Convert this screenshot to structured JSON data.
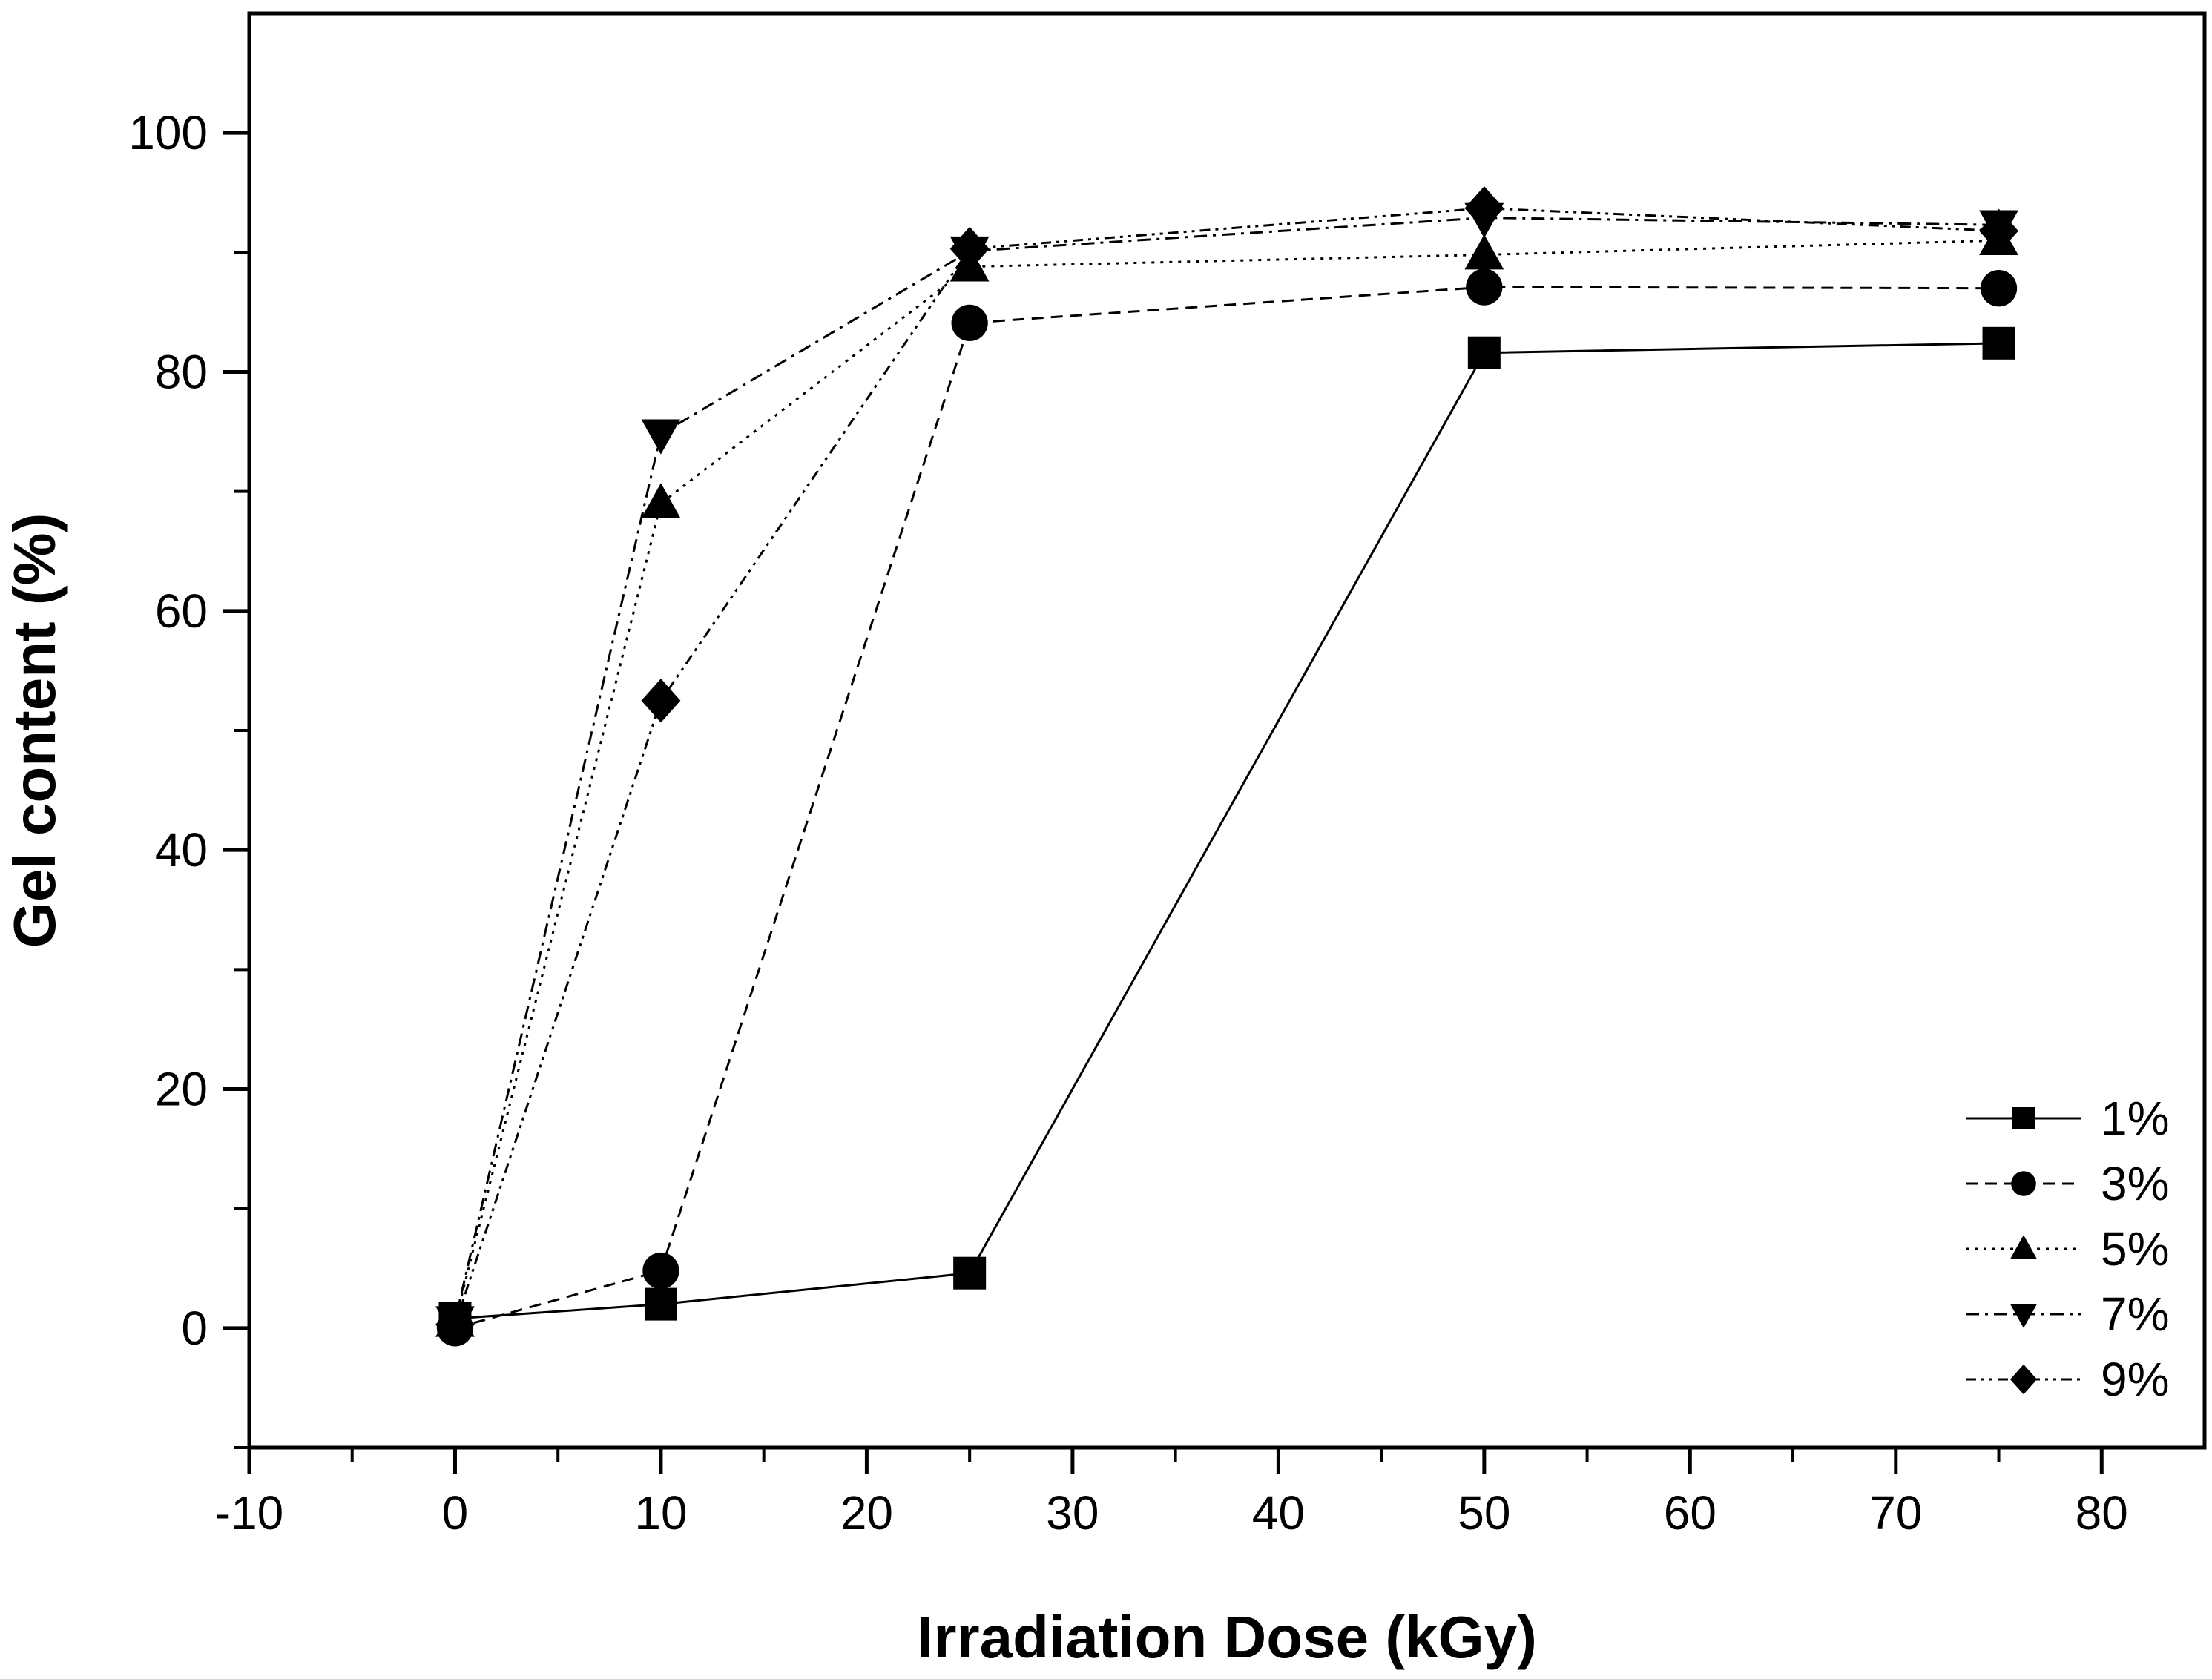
{
  "chart_data": {
    "type": "line",
    "title": "",
    "xlabel": "Irradiation Dose (kGy)",
    "ylabel": "Gel content (%)",
    "xlim": [
      -10,
      85
    ],
    "ylim": [
      -10,
      110
    ],
    "x_major_ticks": [
      -10,
      0,
      10,
      20,
      30,
      40,
      50,
      60,
      70,
      80
    ],
    "x_minor_ticks": [
      -5,
      5,
      15,
      25,
      35,
      45,
      55,
      65,
      75
    ],
    "y_major_ticks": [
      0,
      20,
      40,
      60,
      80,
      100
    ],
    "y_minor_ticks": [
      -10,
      10,
      30,
      50,
      70,
      90
    ],
    "x_tick_labels": [
      "-10",
      "0",
      "10",
      "20",
      "30",
      "40",
      "50",
      "60",
      "70",
      "80"
    ],
    "y_tick_labels": [
      "0",
      "20",
      "40",
      "60",
      "80",
      "100"
    ],
    "x": [
      0,
      10,
      25,
      50,
      75
    ],
    "legend_position": "bottom-right",
    "grid": false,
    "series": [
      {
        "name": "1%",
        "marker": "square",
        "dash": "solid",
        "values": [
          0.8,
          2.0,
          4.6,
          81.6,
          82.4
        ]
      },
      {
        "name": "3%",
        "marker": "circle",
        "dash": "dashed",
        "values": [
          0.0,
          4.8,
          84.1,
          87.1,
          87.0
        ]
      },
      {
        "name": "5%",
        "marker": "triangle-up",
        "dash": "dotted",
        "values": [
          0.5,
          69.0,
          88.8,
          89.8,
          91.0
        ]
      },
      {
        "name": "7%",
        "marker": "triangle-down",
        "dash": "dash-dot",
        "values": [
          0.6,
          74.8,
          90.1,
          92.9,
          92.3
        ]
      },
      {
        "name": "9%",
        "marker": "diamond",
        "dash": "dash-dot-dot",
        "values": [
          0.3,
          52.5,
          90.3,
          93.7,
          91.8
        ]
      }
    ]
  }
}
